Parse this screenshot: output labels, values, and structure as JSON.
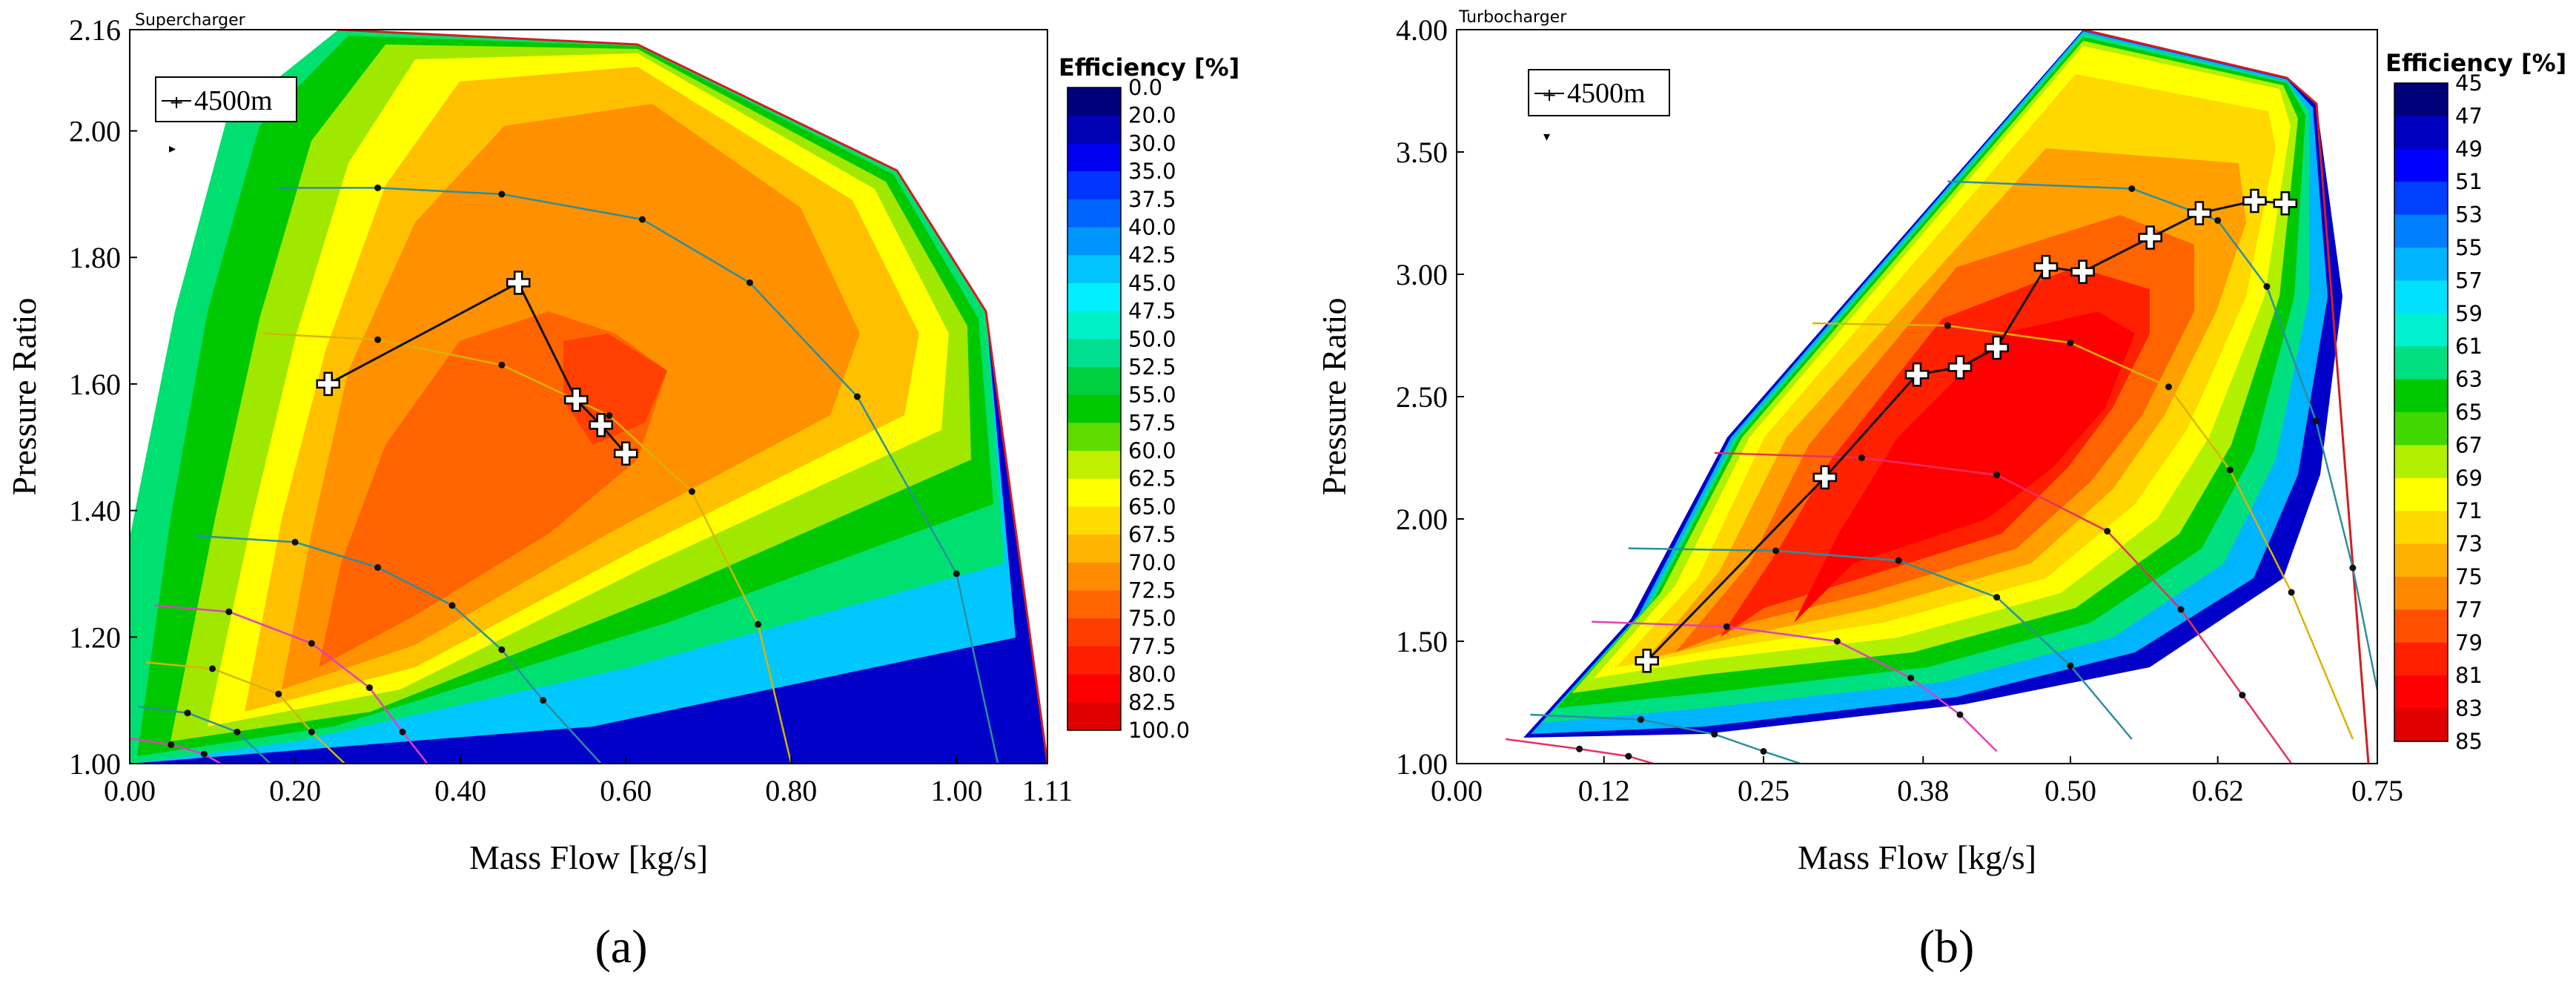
{
  "figure": {
    "panel_a_caption": "(a)",
    "panel_b_caption": "(b)"
  },
  "chart_data": [
    {
      "type": "contour",
      "title": "Supercharger",
      "xlabel": "Mass Flow [kg/s]",
      "ylabel": "Pressure Ratio",
      "xlim": [
        0.0,
        1.11
      ],
      "ylim": [
        1.0,
        2.16
      ],
      "xticks": [
        "0.00",
        "0.20",
        "0.40",
        "0.60",
        "0.80",
        "1.00",
        "1.11"
      ],
      "yticks": [
        "1.00",
        "1.20",
        "1.40",
        "1.60",
        "1.80",
        "2.00",
        "2.16"
      ],
      "legend_label": "4500m",
      "legend_position": "top-left",
      "colorbar_title": "Efficiency [%]",
      "colorbar_levels": [
        "0.0",
        "20.0",
        "30.0",
        "35.0",
        "37.5",
        "40.0",
        "42.5",
        "45.0",
        "47.5",
        "50.0",
        "52.5",
        "55.0",
        "57.5",
        "60.0",
        "62.5",
        "65.0",
        "67.5",
        "70.0",
        "72.5",
        "75.0",
        "77.5",
        "80.0",
        "82.5",
        "100.0"
      ],
      "colorbar_colors": [
        "#00007a",
        "#0000b4",
        "#0000f0",
        "#0034ff",
        "#0064ff",
        "#0094ff",
        "#00c4ff",
        "#00f0ff",
        "#00f0c8",
        "#00e090",
        "#00d040",
        "#00c800",
        "#60dc00",
        "#c0f000",
        "#ffff00",
        "#ffdc00",
        "#ffb400",
        "#ff8c00",
        "#ff6400",
        "#ff3c00",
        "#ff1e00",
        "#ff0000",
        "#e00000"
      ],
      "series": [
        {
          "name": "4500m operating line",
          "x": [
            0.24,
            0.47,
            0.54,
            0.57,
            0.6
          ],
          "y": [
            1.6,
            1.76,
            1.575,
            1.535,
            1.49
          ]
        }
      ],
      "speed_lines": [
        {
          "color": "#2a8fa0",
          "x": [
            0.18,
            0.3,
            0.45,
            0.62,
            0.75,
            0.88,
            1.0,
            1.05
          ],
          "y": [
            1.91,
            1.91,
            1.9,
            1.86,
            1.76,
            1.58,
            1.3,
            1.0
          ]
        },
        {
          "color": "#d8b400",
          "x": [
            0.16,
            0.3,
            0.45,
            0.58,
            0.68,
            0.76,
            0.8
          ],
          "y": [
            1.68,
            1.67,
            1.63,
            1.55,
            1.43,
            1.22,
            1.0
          ]
        },
        {
          "color": "#2a8fa0",
          "x": [
            0.08,
            0.2,
            0.3,
            0.39,
            0.45,
            0.5,
            0.57
          ],
          "y": [
            1.36,
            1.35,
            1.31,
            1.25,
            1.18,
            1.1,
            1.0
          ]
        },
        {
          "color": "#e040c0",
          "x": [
            0.03,
            0.12,
            0.22,
            0.29,
            0.33,
            0.36
          ],
          "y": [
            1.25,
            1.24,
            1.19,
            1.12,
            1.05,
            1.0
          ]
        },
        {
          "color": "#d8b400",
          "x": [
            0.02,
            0.1,
            0.18,
            0.22,
            0.26
          ],
          "y": [
            1.16,
            1.15,
            1.11,
            1.05,
            1.0
          ]
        },
        {
          "color": "#2a8fa0",
          "x": [
            0.01,
            0.07,
            0.13,
            0.17
          ],
          "y": [
            1.09,
            1.08,
            1.05,
            1.0
          ]
        },
        {
          "color": "#e040c0",
          "x": [
            0.0,
            0.05,
            0.09,
            0.11
          ],
          "y": [
            1.04,
            1.03,
            1.015,
            1.0
          ]
        }
      ]
    },
    {
      "type": "contour",
      "title": "Turbocharger",
      "xlabel": "Mass Flow [kg/s]",
      "ylabel": "Pressure Ratio",
      "xlim": [
        0.0,
        0.75
      ],
      "ylim": [
        1.0,
        4.0
      ],
      "xticks": [
        "0.00",
        "0.12",
        "0.25",
        "0.38",
        "0.50",
        "0.62",
        "0.75"
      ],
      "yticks": [
        "1.00",
        "1.50",
        "2.00",
        "2.50",
        "3.00",
        "3.50",
        "4.00"
      ],
      "legend_label": "4500m",
      "legend_position": "top-left",
      "colorbar_title": "Efficiency [%]",
      "colorbar_levels": [
        "45",
        "47",
        "49",
        "51",
        "53",
        "55",
        "57",
        "59",
        "61",
        "63",
        "65",
        "67",
        "69",
        "71",
        "73",
        "75",
        "77",
        "79",
        "81",
        "83",
        "85"
      ],
      "colorbar_colors": [
        "#00007a",
        "#0000c0",
        "#0000ff",
        "#0040ff",
        "#0080ff",
        "#00b4ff",
        "#00e0ff",
        "#00f0d0",
        "#00e080",
        "#00c800",
        "#40d800",
        "#b0f000",
        "#ffff00",
        "#ffd800",
        "#ffb000",
        "#ff8800",
        "#ff5000",
        "#ff2000",
        "#ff0000",
        "#e00000"
      ],
      "series": [
        {
          "name": "4500m operating line",
          "x": [
            0.155,
            0.3,
            0.375,
            0.41,
            0.44,
            0.48,
            0.51,
            0.565,
            0.605,
            0.65,
            0.675
          ],
          "y": [
            1.42,
            2.17,
            2.59,
            2.62,
            2.7,
            3.03,
            3.01,
            3.15,
            3.25,
            3.3,
            3.29
          ]
        }
      ],
      "speed_lines": [
        {
          "color": "#2a8fa0",
          "x": [
            0.4,
            0.55,
            0.62,
            0.66,
            0.7,
            0.73,
            0.75
          ],
          "y": [
            3.38,
            3.35,
            3.22,
            2.95,
            2.4,
            1.8,
            1.3
          ]
        },
        {
          "color": "#d8b400",
          "x": [
            0.29,
            0.4,
            0.5,
            0.58,
            0.63,
            0.68,
            0.73
          ],
          "y": [
            2.8,
            2.79,
            2.72,
            2.54,
            2.2,
            1.7,
            1.1
          ]
        },
        {
          "color": "#e83060",
          "x": [
            0.21,
            0.33,
            0.44,
            0.53,
            0.59,
            0.64,
            0.68
          ],
          "y": [
            2.27,
            2.25,
            2.18,
            1.95,
            1.63,
            1.28,
            1.0
          ]
        },
        {
          "color": "#2a8fa0",
          "x": [
            0.14,
            0.26,
            0.36,
            0.44,
            0.5,
            0.55
          ],
          "y": [
            1.88,
            1.87,
            1.83,
            1.68,
            1.4,
            1.1
          ]
        },
        {
          "color": "#e040c0",
          "x": [
            0.11,
            0.22,
            0.31,
            0.37,
            0.41,
            0.44
          ],
          "y": [
            1.58,
            1.56,
            1.5,
            1.35,
            1.2,
            1.05
          ]
        },
        {
          "color": "#2a8fa0",
          "x": [
            0.06,
            0.15,
            0.21,
            0.25,
            0.28
          ],
          "y": [
            1.2,
            1.18,
            1.12,
            1.05,
            1.0
          ]
        },
        {
          "color": "#e83060",
          "x": [
            0.04,
            0.1,
            0.14,
            0.16
          ],
          "y": [
            1.1,
            1.06,
            1.03,
            1.0
          ]
        }
      ]
    }
  ]
}
